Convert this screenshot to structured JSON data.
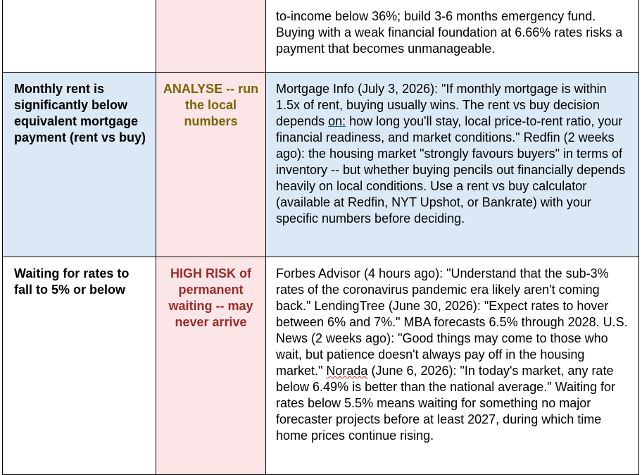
{
  "colors": {
    "row_blue": "#dbe8f6",
    "verdict_pink": "#fbe5e6",
    "analyse_text": "#7a6400",
    "high_risk_text": "#9a2a2a",
    "border": "#000000"
  },
  "rows": [
    {
      "condition": "",
      "verdict": "",
      "details": "to-income below 36%; build 3-6 months emergency fund. Buying with a weak financial foundation at 6.66% rates risks a payment that becomes unmanageable."
    },
    {
      "condition": "Monthly rent is significantly below equivalent mortgage payment (rent vs buy)",
      "verdict": "ANALYSE -- run the local numbers",
      "details_before": "Mortgage Info (July 3, 2026): \"If monthly mortgage is within 1.5x of rent, buying usually wins. The rent vs buy decision depends ",
      "details_underlined": "on:",
      "details_after": " how long you'll stay, local price-to-rent ratio, your financial readiness, and market conditions.\" Redfin (2 weeks ago): the housing market \"strongly favours buyers\" in terms of inventory -- but whether buying pencils out financially depends heavily on local conditions. Use a rent vs buy calculator (available at Redfin, NYT Upshot, or Bankrate) with your specific numbers before deciding."
    },
    {
      "condition": "Waiting for rates to fall to 5% or below",
      "verdict": "HIGH RISK of permanent waiting -- may never arrive",
      "details_before": "Forbes Advisor (4 hours ago): \"Understand that the sub-3% rates of the coronavirus pandemic era likely aren't coming back.\" LendingTree (June 30, 2026): \"Expect rates to hover between 6% and 7%.\" MBA forecasts 6.5% through 2028. U.S. News (2 weeks ago): \"Good things may come to those who wait, but patience doesn't always pay off in the housing market.\" ",
      "details_underlined": "Norada",
      "details_after": " (June 6, 2026): \"In today's market, any rate below 6.49% is better than the national average.\" Waiting for rates below 5.5% means waiting for something no major forecaster projects before at least 2027, during which time home prices continue rising."
    }
  ]
}
